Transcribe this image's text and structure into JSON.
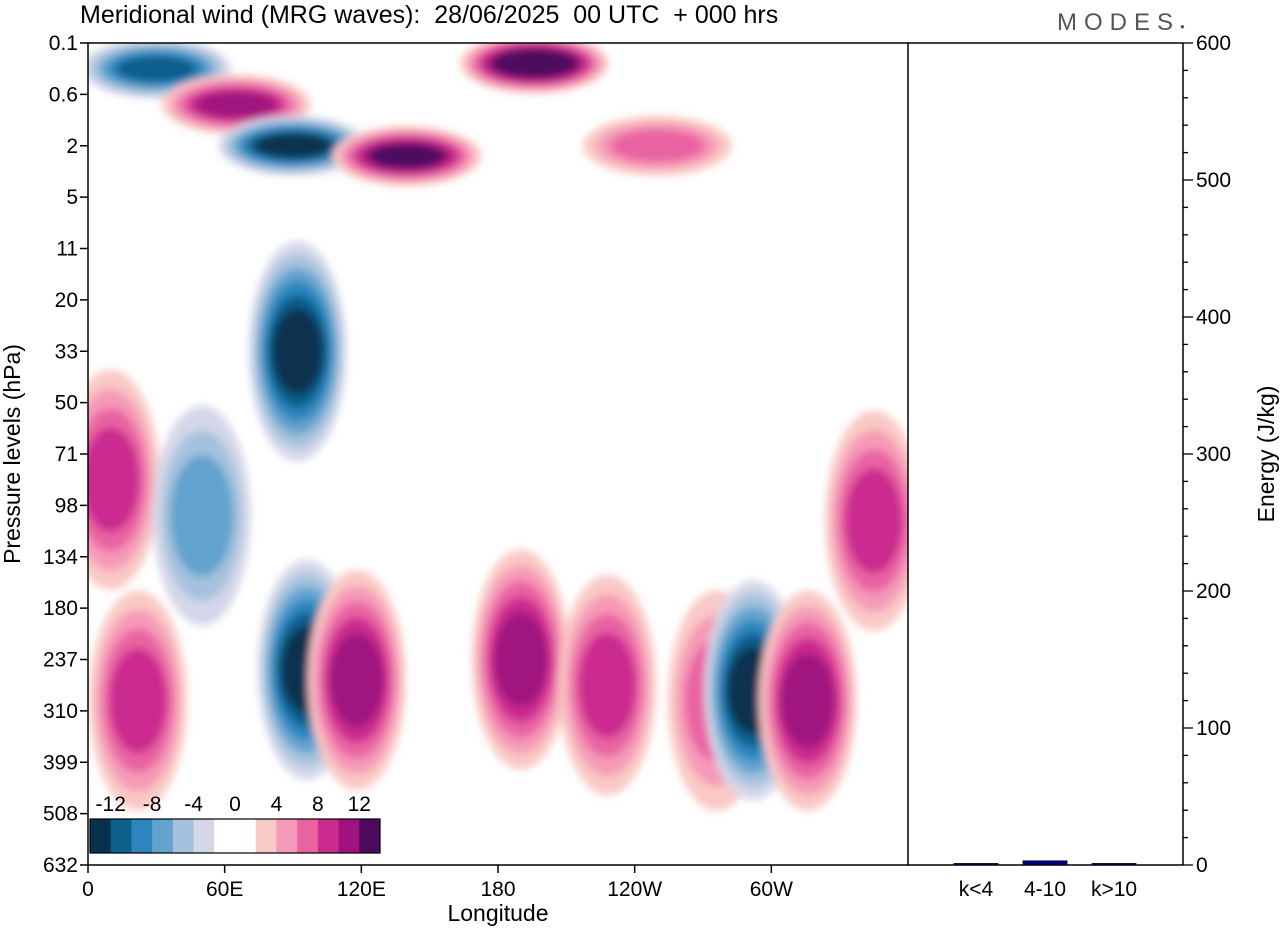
{
  "title": "Meridional wind (MRG waves):  28/06/2025  00 UTC  + 000 hrs",
  "logo": "MODES",
  "chart_data": [
    {
      "type": "heatmap",
      "name": "meridional-wind-section",
      "xlabel": "Longitude",
      "ylabel": "Pressure levels (hPa)",
      "x_ticks": [
        "0",
        "60E",
        "120E",
        "180",
        "120W",
        "60W"
      ],
      "y_ticks": [
        "0.1",
        "0.6",
        "2",
        "5",
        "11",
        "20",
        "33",
        "50",
        "71",
        "98",
        "134",
        "180",
        "237",
        "310",
        "399",
        "508",
        "632"
      ],
      "colorbar": {
        "labels": [
          "-12",
          "-8",
          "-4",
          "0",
          "4",
          "8",
          "12"
        ],
        "colors": [
          "#08304f",
          "#0d5f8c",
          "#2c85bd",
          "#64a3cf",
          "#a4c2dd",
          "#d4d7e9",
          "#ffffff",
          "#ffffff",
          "#f9c9c5",
          "#f59ab7",
          "#e963a2",
          "#cb2b8f",
          "#a0127e",
          "#4e0a5f"
        ]
      },
      "features": [
        {
          "lon": 10,
          "level": 8.5,
          "value": 8
        },
        {
          "lon": 22,
          "level": 12.8,
          "value": 8
        },
        {
          "lon": 30,
          "level": 0.5,
          "value": -10
        },
        {
          "lon": 50,
          "level": 9.2,
          "value": -6
        },
        {
          "lon": 65,
          "level": 1.2,
          "value": 9
        },
        {
          "lon": 90,
          "level": 2.0,
          "value": -12
        },
        {
          "lon": 92,
          "level": 6.0,
          "value": -12
        },
        {
          "lon": 96,
          "level": 12.2,
          "value": -12
        },
        {
          "lon": 118,
          "level": 12.4,
          "value": 9
        },
        {
          "lon": 140,
          "level": 2.2,
          "value": 12
        },
        {
          "lon": 190,
          "level": 12.0,
          "value": 9
        },
        {
          "lon": 196,
          "level": 0.4,
          "value": 14
        },
        {
          "lon": 228,
          "level": 12.5,
          "value": 8
        },
        {
          "lon": 250,
          "level": 2.0,
          "value": 6
        },
        {
          "lon": 276,
          "level": 12.8,
          "value": 6
        },
        {
          "lon": 292,
          "level": 12.6,
          "value": -12
        },
        {
          "lon": 316,
          "level": 12.8,
          "value": 9
        },
        {
          "lon": 345,
          "level": 9.3,
          "value": 8
        }
      ]
    },
    {
      "type": "bar",
      "name": "energy-by-wavenumber",
      "categories": [
        "k<4",
        "4-10",
        "k>10"
      ],
      "values": [
        0.5,
        3,
        0.3
      ],
      "ylabel": "Energy (J/kg)",
      "ylim": [
        0,
        600
      ],
      "y_ticks": [
        "0",
        "100",
        "200",
        "300",
        "400",
        "500",
        "600"
      ],
      "bar_color": "#00008b"
    }
  ]
}
